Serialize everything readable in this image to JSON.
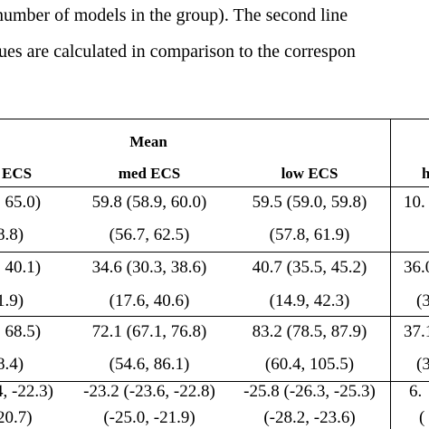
{
  "paragraph": {
    "line1": "number of models in the group). The second line",
    "line2": "ues are calculated in comparison to the correspon"
  },
  "table": {
    "header_group": "Mean",
    "columns": {
      "col_a": "ECS",
      "col_b": "med ECS",
      "col_c": "low ECS",
      "col_d": "h"
    },
    "rows": [
      {
        "a1": ", 65.0)",
        "b1": "59.8 (58.9, 60.0)",
        "c1": "59.5 (59.0, 59.8)",
        "d1": "10.",
        "a2": "8.8)",
        "b2": "(56.7, 62.5)",
        "c2": "(57.8, 61.9)",
        "d2": ""
      },
      {
        "a1": ", 40.1)",
        "b1": "34.6 (30.3, 38.6)",
        "c1": "40.7 (35.5, 45.2)",
        "d1": "36.0",
        "a2": "1.9)",
        "b2": "(17.6, 40.6)",
        "c2": "(14.9, 42.3)",
        "d2": "(3"
      },
      {
        "a1": ", 68.5)",
        "b1": "72.1 (67.1, 76.8)",
        "c1": "83.2 (78.5, 87.9)",
        "d1": "37.1",
        "a2": "8.4)",
        "b2": "(54.6, 86.1)",
        "c2": "(60.4, 105.5)",
        "d2": "(3"
      },
      {
        "a1": "4, -22.3)",
        "b1": "-23.2 (-23.6, -22.8)",
        "c1": "-25.8 (-26.3, -25.3)",
        "d1": "6.",
        "a2": "20.7)",
        "b2": "(-25.0, -21.9)",
        "c2": "(-28.2, -23.6)",
        "d2": "("
      }
    ]
  }
}
